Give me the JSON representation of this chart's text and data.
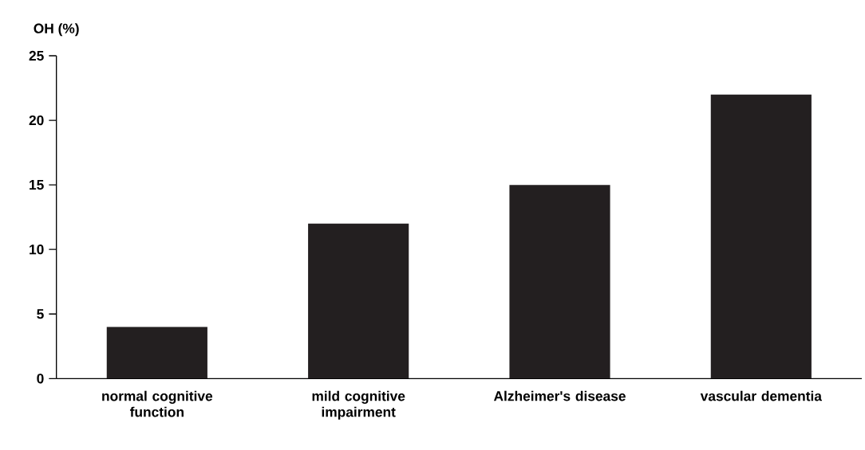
{
  "chart_data": {
    "type": "bar",
    "ylabel": "OH (%)",
    "categories": [
      "normal cognitive function",
      "mild cognitive impairment",
      "Alzheimer's disease",
      "vascular dementia"
    ],
    "values": [
      4,
      12,
      15,
      22
    ],
    "color": "#231f20",
    "ylim": [
      0,
      25
    ],
    "yticks": [
      0,
      5,
      10,
      15,
      20,
      25
    ],
    "grid": false
  }
}
